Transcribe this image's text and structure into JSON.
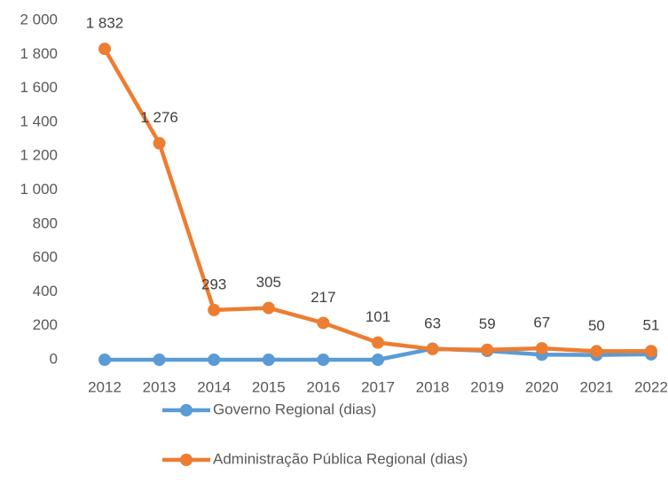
{
  "chart_data": {
    "type": "line",
    "categories": [
      "2012",
      "2013",
      "2014",
      "2015",
      "2016",
      "2017",
      "2018",
      "2019",
      "2020",
      "2021",
      "2022"
    ],
    "series": [
      {
        "name": "Governo Regional (dias)",
        "color": "#5b9bd5",
        "values": [
          0,
          0,
          0,
          0,
          0,
          0,
          65,
          52,
          30,
          28,
          32
        ]
      },
      {
        "name": "Administração Pública Regional (dias)",
        "color": "#ed7d31",
        "values": [
          1832,
          1276,
          293,
          305,
          217,
          101,
          63,
          59,
          67,
          50,
          51
        ],
        "value_labels": [
          "1 832",
          "1 276",
          "293",
          "305",
          "217",
          "101",
          "63",
          "59",
          "67",
          "50",
          "51"
        ]
      }
    ],
    "ylim": [
      0,
      2000
    ],
    "yticks": [
      0,
      200,
      400,
      600,
      800,
      {
        "value": 1000,
        "label": "1 000"
      },
      {
        "value": 1200,
        "label": "1 200"
      },
      {
        "value": 1400,
        "label": "1 400"
      },
      {
        "value": 1600,
        "label": "1 600"
      },
      {
        "value": 1800,
        "label": "1 800"
      },
      {
        "value": 2000,
        "label": "2 000"
      }
    ],
    "grid": false
  }
}
